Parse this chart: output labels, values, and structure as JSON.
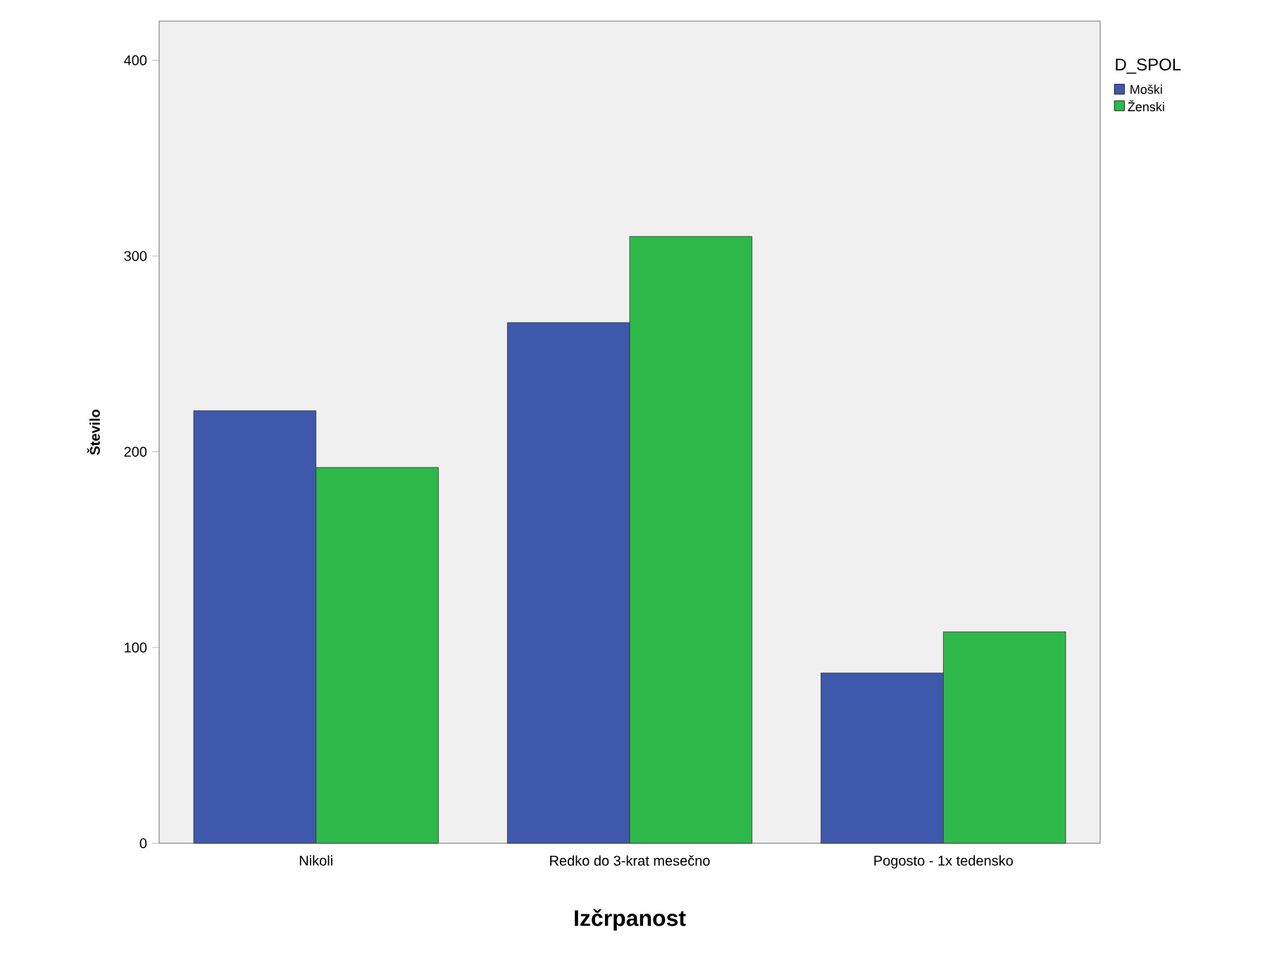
{
  "chart_data": {
    "type": "bar",
    "xlabel": "Izčrpanost",
    "ylabel": "Število",
    "legend_title": "D_SPOL",
    "categories": [
      "Nikoli",
      "Redko do 3-krat mesečno",
      "Pogosto - 1x tedensko"
    ],
    "series": [
      {
        "name": "Moški",
        "color": "#3e58ac",
        "values": [
          221,
          266,
          87
        ]
      },
      {
        "name": "Ženski",
        "color": "#2eb84a",
        "values": [
          192,
          310,
          108
        ]
      }
    ],
    "ylim": [
      0,
      420
    ],
    "yticks": [
      0,
      100,
      200,
      300,
      400
    ],
    "grid": false,
    "legend": "top right"
  }
}
